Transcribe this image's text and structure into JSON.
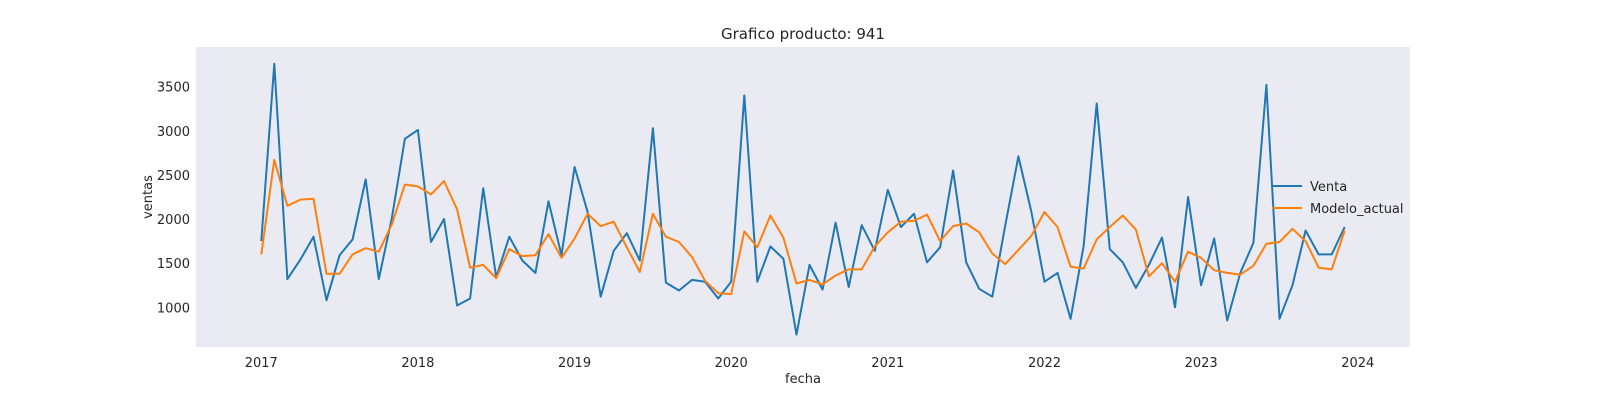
{
  "chart_data": {
    "type": "line",
    "title": "Grafico producto: 941",
    "xlabel": "fecha",
    "ylabel": "ventas",
    "x_ticks": [
      "2017",
      "2018",
      "2019",
      "2020",
      "2021",
      "2022",
      "2023",
      "2024"
    ],
    "y_ticks": [
      "1000",
      "1500",
      "2000",
      "2500",
      "3000",
      "3500"
    ],
    "x_range": [
      "2016-08",
      "2024-05"
    ],
    "ylim": [
      550,
      3950
    ],
    "grid": false,
    "background": "#eaeaf2",
    "legend_position": "right",
    "x": [
      "2017-01",
      "2017-02",
      "2017-03",
      "2017-04",
      "2017-05",
      "2017-06",
      "2017-07",
      "2017-08",
      "2017-09",
      "2017-10",
      "2017-11",
      "2017-12",
      "2018-01",
      "2018-02",
      "2018-03",
      "2018-04",
      "2018-05",
      "2018-06",
      "2018-07",
      "2018-08",
      "2018-09",
      "2018-10",
      "2018-11",
      "2018-12",
      "2019-01",
      "2019-02",
      "2019-03",
      "2019-04",
      "2019-05",
      "2019-06",
      "2019-07",
      "2019-08",
      "2019-09",
      "2019-10",
      "2019-11",
      "2019-12",
      "2020-01",
      "2020-02",
      "2020-03",
      "2020-04",
      "2020-05",
      "2020-06",
      "2020-07",
      "2020-08",
      "2020-09",
      "2020-10",
      "2020-11",
      "2020-12",
      "2021-01",
      "2021-02",
      "2021-03",
      "2021-04",
      "2021-05",
      "2021-06",
      "2021-07",
      "2021-08",
      "2021-09",
      "2021-10",
      "2021-11",
      "2021-12",
      "2022-01",
      "2022-02",
      "2022-03",
      "2022-04",
      "2022-05",
      "2022-06",
      "2022-07",
      "2022-08",
      "2022-09",
      "2022-10",
      "2022-11",
      "2022-12",
      "2023-01",
      "2023-02",
      "2023-03",
      "2023-04",
      "2023-05",
      "2023-06",
      "2023-07",
      "2023-08",
      "2023-09",
      "2023-10",
      "2023-11",
      "2023-12"
    ],
    "series": [
      {
        "name": "Venta",
        "color": "#1f77b4",
        "values": [
          1750,
          3760,
          1320,
          1540,
          1800,
          1080,
          1590,
          1770,
          2450,
          1320,
          2010,
          2910,
          3010,
          1740,
          2000,
          1020,
          1100,
          2350,
          1340,
          1800,
          1530,
          1390,
          2200,
          1590,
          2590,
          2080,
          1120,
          1640,
          1840,
          1530,
          3030,
          1280,
          1190,
          1310,
          1290,
          1100,
          1290,
          3400,
          1290,
          1690,
          1550,
          690,
          1480,
          1200,
          1960,
          1230,
          1930,
          1640,
          2330,
          1910,
          2060,
          1510,
          1680,
          2550,
          1510,
          1210,
          1120,
          1930,
          2710,
          2080,
          1290,
          1390,
          870,
          1700,
          3310,
          1660,
          1510,
          1220,
          1480,
          1790,
          1000,
          2250,
          1250,
          1780,
          850,
          1390,
          1730,
          3520,
          870,
          1250,
          1870,
          1600,
          1600,
          1910
        ]
      },
      {
        "name": "Modelo_actual",
        "color": "#ff7f0e",
        "values": [
          1600,
          2670,
          2150,
          2220,
          2230,
          1380,
          1380,
          1600,
          1670,
          1630,
          1940,
          2390,
          2370,
          2280,
          2430,
          2110,
          1450,
          1480,
          1330,
          1660,
          1580,
          1590,
          1830,
          1560,
          1780,
          2060,
          1920,
          1970,
          1680,
          1400,
          2060,
          1800,
          1740,
          1570,
          1300,
          1160,
          1150,
          1860,
          1680,
          2040,
          1790,
          1270,
          1310,
          1260,
          1360,
          1430,
          1430,
          1690,
          1850,
          1970,
          1980,
          2050,
          1750,
          1920,
          1950,
          1850,
          1610,
          1490,
          1650,
          1810,
          2080,
          1910,
          1460,
          1440,
          1770,
          1910,
          2040,
          1880,
          1350,
          1500,
          1290,
          1630,
          1560,
          1420,
          1390,
          1370,
          1470,
          1720,
          1740,
          1890,
          1750,
          1450,
          1430,
          1870
        ]
      }
    ]
  }
}
